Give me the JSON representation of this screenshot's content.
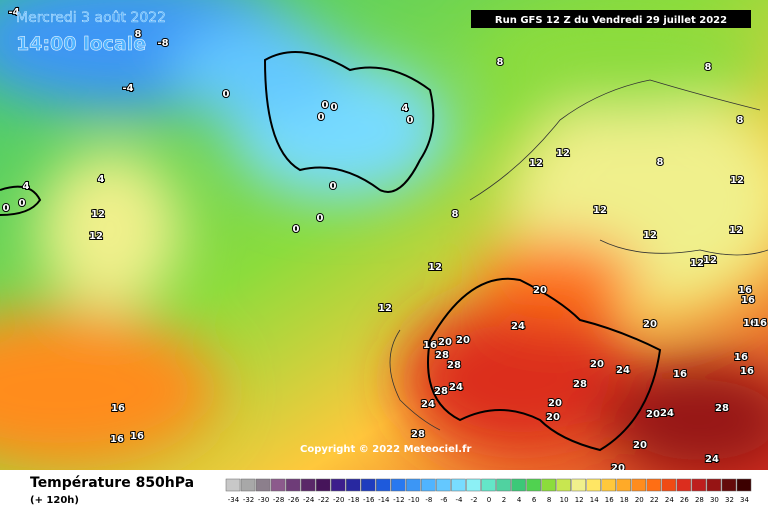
{
  "header": {
    "date": "Mercredi 3 août 2022",
    "time": "14:00 locale",
    "run": "Run GFS 12 Z du Vendredi 29 juillet 2022"
  },
  "copyright": "Copyright © 2022 Meteociel.fr",
  "footer": {
    "title": "Température 850hPa",
    "lead": "(+ 120h)"
  },
  "scale": {
    "labels": [
      "-34",
      "-32",
      "-30",
      "-28",
      "-26",
      "-24",
      "-22",
      "-20",
      "-18",
      "-16",
      "-14",
      "-12",
      "-10",
      "-8",
      "-6",
      "-4",
      "-2",
      "0",
      "2",
      "4",
      "6",
      "8",
      "10",
      "12",
      "14",
      "16",
      "18",
      "20",
      "22",
      "24",
      "26",
      "28",
      "30",
      "32",
      "34"
    ],
    "colors": [
      "#c8c8c8",
      "#a8a8a8",
      "#8c7f8c",
      "#8c5a8c",
      "#6e3c78",
      "#5a2868",
      "#46145a",
      "#3c1e8c",
      "#2828a0",
      "#1e3cbe",
      "#1e5adc",
      "#2878f0",
      "#3c96f5",
      "#50b4ff",
      "#64c8ff",
      "#78dcff",
      "#8cf0f5",
      "#64e6c8",
      "#50d2a0",
      "#3cc878",
      "#50d250",
      "#8cdc3c",
      "#c8e650",
      "#f0f08c",
      "#ffe664",
      "#ffc83c",
      "#ffaa28",
      "#ff8c1e",
      "#ff6e14",
      "#f04b14",
      "#dc2d1e",
      "#be1e1e",
      "#961414",
      "#640a0a",
      "#3c0000"
    ]
  },
  "map": {
    "contour_labels": [
      "-4",
      "8",
      "-8",
      "-4",
      "0",
      "0",
      "0",
      "0",
      "4",
      "0",
      "8",
      "8",
      "8",
      "8",
      "12",
      "12",
      "12",
      "12",
      "12",
      "12",
      "4",
      "0",
      "0",
      "4",
      "12",
      "12",
      "8",
      "0",
      "0",
      "0",
      "12",
      "12",
      "20",
      "24",
      "12",
      "12",
      "16",
      "16",
      "16",
      "16",
      "20",
      "16",
      "20",
      "20",
      "28",
      "28",
      "24",
      "28",
      "24",
      "20",
      "24",
      "28",
      "16",
      "16",
      "16",
      "20",
      "20",
      "20",
      "24",
      "28",
      "16",
      "16",
      "16",
      "28",
      "20",
      "24",
      "20"
    ]
  }
}
